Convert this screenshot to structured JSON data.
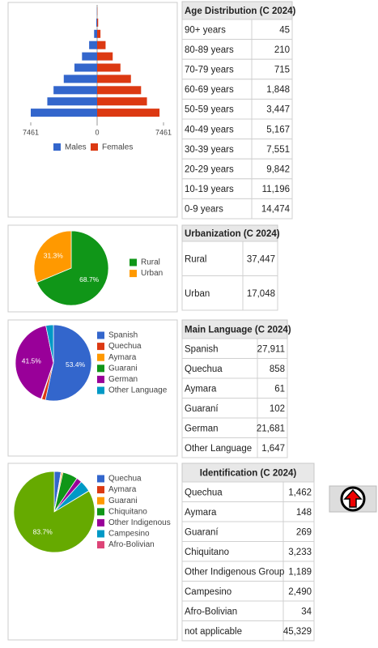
{
  "chart_data": [
    {
      "type": "pyramid",
      "series": [
        {
          "name": "Males",
          "color": "#3366cc",
          "values": [
            -20,
            -95,
            -340,
            -900,
            -1700,
            -2550,
            -3750,
            -4900,
            -5600,
            -7461
          ]
        },
        {
          "name": "Females",
          "color": "#dc3912",
          "values": [
            25,
            115,
            375,
            950,
            1750,
            2620,
            3800,
            4940,
            5600,
            7013
          ]
        }
      ],
      "xlim": [
        -7461,
        7461
      ],
      "xticks": [
        {
          "value": -7461,
          "label": "7461"
        },
        0,
        7461
      ]
    },
    {
      "type": "pie",
      "categories": [
        "Rural",
        "Urban"
      ],
      "values": [
        68.7,
        31.3
      ],
      "value_labels": [
        "68.7%",
        "31.3%"
      ],
      "colors": [
        "#109618",
        "#ff9900"
      ]
    },
    {
      "type": "pie",
      "categories": [
        "Spanish",
        "Quechua",
        "Aymara",
        "Guarani",
        "German",
        "Other Language"
      ],
      "values": [
        53.4,
        1.6,
        0.1,
        0.2,
        41.5,
        3.2
      ],
      "value_labels": [
        "53.4%",
        null,
        null,
        null,
        "41.5%",
        null
      ],
      "colors": [
        "#3366cc",
        "#dc3912",
        "#ff9900",
        "#109618",
        "#990099",
        "#0099c6"
      ]
    },
    {
      "type": "pie",
      "categories": [
        "Quechua",
        "Aymara",
        "Guarani",
        "Chiquitano",
        "Other Indigenous",
        "Campesino",
        "Afro-Bolivian",
        null
      ],
      "values": [
        2.7,
        0.3,
        0.5,
        6.0,
        2.2,
        4.6,
        0.1,
        83.7
      ],
      "value_labels": [
        null,
        null,
        null,
        null,
        null,
        null,
        null,
        "83.7%"
      ],
      "colors": [
        "#3366cc",
        "#dc3912",
        "#ff9900",
        "#109618",
        "#990099",
        "#0099c6",
        "#dd4477",
        "#66aa00"
      ]
    }
  ],
  "tables": [
    {
      "title": "Age Distribution (C 2024)",
      "rows": [
        [
          "90+ years",
          "45"
        ],
        [
          "80-89 years",
          "210"
        ],
        [
          "70-79 years",
          "715"
        ],
        [
          "60-69 years",
          "1,848"
        ],
        [
          "50-59 years",
          "3,447"
        ],
        [
          "40-49 years",
          "5,167"
        ],
        [
          "30-39 years",
          "7,551"
        ],
        [
          "20-29 years",
          "9,842"
        ],
        [
          "10-19 years",
          "11,196"
        ],
        [
          "0-9 years",
          "14,474"
        ]
      ]
    },
    {
      "title": "Urbanization (C 2024)",
      "rows": [
        [
          "Rural",
          "37,447"
        ],
        [
          "Urban",
          "17,048"
        ]
      ]
    },
    {
      "title": "Main Language (C 2024)",
      "rows": [
        [
          "Spanish",
          "27,911"
        ],
        [
          "Quechua",
          "858"
        ],
        [
          "Aymara",
          "61"
        ],
        [
          "Guaraní",
          "102"
        ],
        [
          "German",
          "21,681"
        ],
        [
          "Other Language",
          "1,647"
        ]
      ]
    },
    {
      "title": "Identification (C 2024)",
      "rows": [
        [
          "Quechua",
          "1,462"
        ],
        [
          "Aymara",
          "148"
        ],
        [
          "Guaraní",
          "269"
        ],
        [
          "Chiquitano",
          "3,233"
        ],
        [
          "Other Indigenous Group",
          "1,189"
        ],
        [
          "Campesino",
          "2,490"
        ],
        [
          "Afro-Bolivian",
          "34"
        ],
        [
          "not applicable",
          "45,329"
        ]
      ]
    }
  ]
}
